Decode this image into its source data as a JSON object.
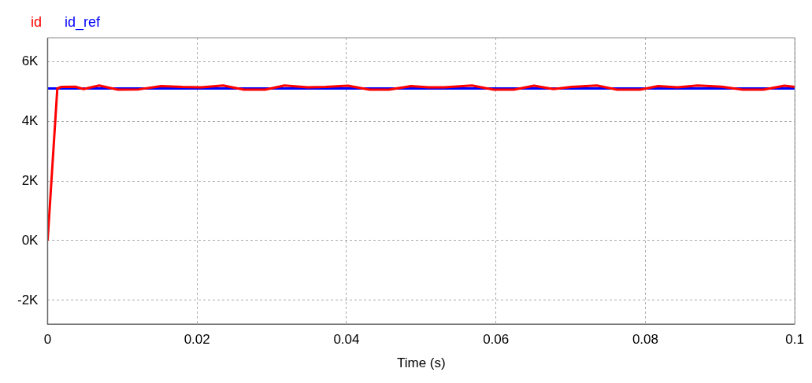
{
  "chart_data": {
    "type": "line",
    "xlabel": "Time (s)",
    "legend": "top left",
    "grid": true,
    "line_style": "solid",
    "marker": "none",
    "xlim": [
      0,
      0.1
    ],
    "xticks": [
      0,
      0.02,
      0.04,
      0.06,
      0.08,
      0.1
    ],
    "ylim": [
      -2800,
      6800
    ],
    "yticks": [
      {
        "value": -2000,
        "label": "-2K"
      },
      {
        "value": 0,
        "label": "0K"
      },
      {
        "value": 2000,
        "label": "2K"
      },
      {
        "value": 4000,
        "label": "4K"
      },
      {
        "value": 6000,
        "label": "6K"
      }
    ],
    "series": [
      {
        "name": "id",
        "color": "#ff0000",
        "x": [
          0,
          0.0013,
          0.0018,
          0.0037,
          0.0048,
          0.0069,
          0.0094,
          0.0122,
          0.0152,
          0.018,
          0.0206,
          0.0235,
          0.0263,
          0.0291,
          0.0317,
          0.0348,
          0.0372,
          0.0402,
          0.0431,
          0.0457,
          0.0486,
          0.051,
          0.0531,
          0.0568,
          0.0597,
          0.0624,
          0.0651,
          0.0677,
          0.0701,
          0.0735,
          0.0762,
          0.0793,
          0.0817,
          0.0843,
          0.087,
          0.0902,
          0.093,
          0.0958,
          0.0986,
          0.1
        ],
        "values": [
          0,
          5100,
          5150,
          5160,
          5080,
          5200,
          5060,
          5070,
          5180,
          5150,
          5140,
          5200,
          5060,
          5060,
          5200,
          5140,
          5150,
          5190,
          5060,
          5060,
          5180,
          5140,
          5140,
          5200,
          5060,
          5060,
          5190,
          5080,
          5150,
          5200,
          5060,
          5060,
          5180,
          5140,
          5200,
          5160,
          5060,
          5060,
          5190,
          5150
        ]
      },
      {
        "name": "id_ref",
        "color": "#0000ff",
        "x": [
          0,
          0.1
        ],
        "values": [
          5100,
          5100
        ]
      }
    ]
  }
}
